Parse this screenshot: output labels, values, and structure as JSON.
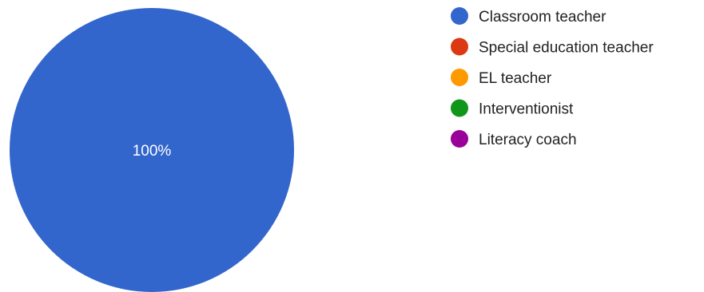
{
  "chart_data": {
    "type": "pie",
    "title": "",
    "categories": [
      "Classroom teacher",
      "Special education teacher",
      "EL teacher",
      "Interventionist",
      "Literacy coach"
    ],
    "values": [
      100,
      0,
      0,
      0,
      0
    ],
    "slice_labels": [
      "100%",
      "",
      "",
      "",
      ""
    ],
    "colors": [
      "#3366cc",
      "#dc3912",
      "#ff9900",
      "#109618",
      "#990099"
    ],
    "legend_position": "right"
  }
}
